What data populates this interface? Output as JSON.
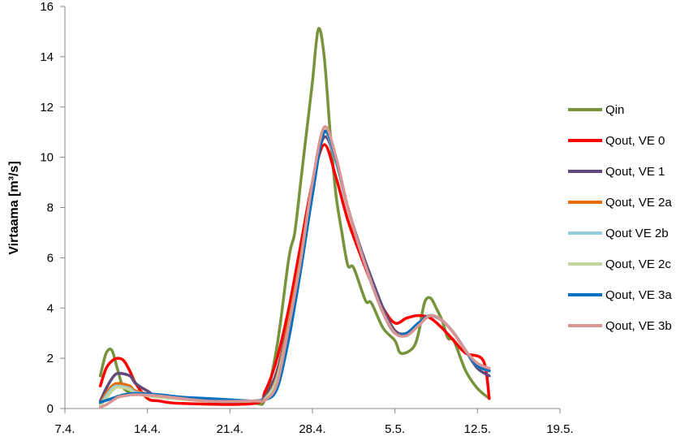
{
  "chart_data": {
    "type": "line",
    "ylabel": "Virtaama [m³/s]",
    "ylim": [
      0,
      16
    ],
    "yticks": [
      "0",
      "2",
      "4",
      "6",
      "8",
      "10",
      "12",
      "14",
      "16"
    ],
    "xlim": [
      0,
      42
    ],
    "xticks": [
      {
        "x": 0,
        "label": "7.4."
      },
      {
        "x": 7,
        "label": "14.4."
      },
      {
        "x": 14,
        "label": "21.4."
      },
      {
        "x": 21,
        "label": "28.4."
      },
      {
        "x": 28,
        "label": "5.5."
      },
      {
        "x": 35,
        "label": "12.5."
      },
      {
        "x": 42,
        "label": "19.5."
      }
    ],
    "legend_position": "right",
    "grid": false,
    "series": [
      {
        "name": "Qin",
        "color": "#77933C",
        "points": [
          [
            3,
            1.3
          ],
          [
            3.5,
            2.2
          ],
          [
            4,
            2.3
          ],
          [
            4.5,
            1.5
          ],
          [
            5,
            0.8
          ],
          [
            6,
            0.6
          ],
          [
            8,
            0.5
          ],
          [
            12,
            0.3
          ],
          [
            16,
            0.2
          ],
          [
            17,
            0.4
          ],
          [
            18,
            2.5
          ],
          [
            19,
            6
          ],
          [
            19.5,
            7
          ],
          [
            20,
            9
          ],
          [
            20.5,
            11
          ],
          [
            21,
            13
          ],
          [
            21.5,
            15.1
          ],
          [
            22,
            14
          ],
          [
            22.5,
            11
          ],
          [
            23,
            8.5
          ],
          [
            23.5,
            7
          ],
          [
            24,
            5.7
          ],
          [
            24.5,
            5.6
          ],
          [
            25.5,
            4.3
          ],
          [
            26,
            4.2
          ],
          [
            27,
            3.2
          ],
          [
            28,
            2.7
          ],
          [
            28.5,
            2.2
          ],
          [
            29.5,
            2.4
          ],
          [
            30,
            3
          ],
          [
            30.5,
            4.2
          ],
          [
            31,
            4.4
          ],
          [
            31.5,
            4
          ],
          [
            32,
            3.5
          ],
          [
            32.5,
            2.8
          ],
          [
            33,
            2.7
          ],
          [
            34,
            1.5
          ],
          [
            35,
            0.8
          ],
          [
            36,
            0.4
          ]
        ]
      },
      {
        "name": "Qout, VE 0",
        "color": "#FF0000",
        "points": [
          [
            3,
            0.9
          ],
          [
            3.5,
            1.6
          ],
          [
            4,
            1.9
          ],
          [
            4.5,
            2
          ],
          [
            5,
            1.9
          ],
          [
            5.5,
            1.5
          ],
          [
            6,
            1
          ],
          [
            7,
            0.4
          ],
          [
            8,
            0.3
          ],
          [
            10,
            0.2
          ],
          [
            16,
            0.2
          ],
          [
            17,
            0.7
          ],
          [
            18,
            2
          ],
          [
            19,
            4
          ],
          [
            20,
            6.5
          ],
          [
            21,
            9
          ],
          [
            22,
            10.5
          ],
          [
            23,
            9.2
          ],
          [
            24,
            7.5
          ],
          [
            25,
            6.2
          ],
          [
            26,
            5
          ],
          [
            27,
            4
          ],
          [
            28,
            3.4
          ],
          [
            29,
            3.6
          ],
          [
            30,
            3.7
          ],
          [
            31,
            3.6
          ],
          [
            32,
            3.2
          ],
          [
            33,
            2.7
          ],
          [
            34,
            2.2
          ],
          [
            35.5,
            1.9
          ],
          [
            36,
            0.4
          ]
        ]
      },
      {
        "name": "Qout, VE 1",
        "color": "#604A7B",
        "points": [
          [
            3,
            0.3
          ],
          [
            3.5,
            0.8
          ],
          [
            4,
            1.2
          ],
          [
            4.5,
            1.4
          ],
          [
            5.5,
            1.3
          ],
          [
            6,
            1
          ],
          [
            7,
            0.7
          ],
          [
            8,
            0.5
          ],
          [
            12,
            0.3
          ],
          [
            16,
            0.3
          ],
          [
            17,
            0.5
          ],
          [
            18,
            1.5
          ],
          [
            19,
            3.5
          ],
          [
            20,
            6
          ],
          [
            21,
            9
          ],
          [
            22,
            10.8
          ],
          [
            23,
            9.8
          ],
          [
            24,
            8
          ],
          [
            25,
            6.5
          ],
          [
            26,
            5.2
          ],
          [
            27,
            4
          ],
          [
            28,
            3.1
          ],
          [
            29,
            3
          ],
          [
            30,
            3.4
          ],
          [
            31,
            3.7
          ],
          [
            32,
            3.5
          ],
          [
            33,
            3
          ],
          [
            34,
            2.3
          ],
          [
            35,
            1.6
          ],
          [
            36,
            1.3
          ]
        ]
      },
      {
        "name": "Qout, VE 2a",
        "color": "#E46C0A",
        "points": [
          [
            3,
            0.2
          ],
          [
            3.5,
            0.6
          ],
          [
            4,
            0.9
          ],
          [
            4.5,
            1
          ],
          [
            5.5,
            0.9
          ],
          [
            6,
            0.7
          ],
          [
            8,
            0.5
          ],
          [
            12,
            0.3
          ],
          [
            16,
            0.3
          ],
          [
            17,
            0.4
          ],
          [
            18,
            1.3
          ],
          [
            19,
            3.5
          ],
          [
            20,
            6
          ],
          [
            21,
            9
          ],
          [
            22,
            11
          ],
          [
            23,
            9.8
          ],
          [
            24,
            8
          ],
          [
            25,
            6.4
          ],
          [
            26,
            5
          ],
          [
            27,
            3.8
          ],
          [
            28,
            3
          ],
          [
            29,
            3
          ],
          [
            30,
            3.4
          ],
          [
            31,
            3.7
          ],
          [
            32,
            3.5
          ],
          [
            33,
            3
          ],
          [
            34,
            2.3
          ],
          [
            35,
            1.7
          ],
          [
            36,
            1.5
          ]
        ]
      },
      {
        "name": "Qout VE 2b",
        "color": "#93CDDD",
        "points": [
          [
            3,
            0.15
          ],
          [
            3.5,
            0.5
          ],
          [
            4,
            0.8
          ],
          [
            4.5,
            0.9
          ],
          [
            5.5,
            0.8
          ],
          [
            6,
            0.65
          ],
          [
            8,
            0.5
          ],
          [
            12,
            0.3
          ],
          [
            16,
            0.3
          ],
          [
            17,
            0.4
          ],
          [
            18,
            1.2
          ],
          [
            19,
            3.3
          ],
          [
            20,
            5.8
          ],
          [
            21,
            8.8
          ],
          [
            22,
            11
          ],
          [
            23,
            9.8
          ],
          [
            24,
            8
          ],
          [
            25,
            6.4
          ],
          [
            26,
            5
          ],
          [
            27,
            3.8
          ],
          [
            28,
            3
          ],
          [
            29,
            3
          ],
          [
            30,
            3.4
          ],
          [
            31,
            3.7
          ],
          [
            32,
            3.5
          ],
          [
            33,
            3
          ],
          [
            34,
            2.3
          ],
          [
            35,
            1.7
          ],
          [
            36,
            1.5
          ]
        ]
      },
      {
        "name": "Qout, VE 2c",
        "color": "#C3D69B",
        "points": [
          [
            3,
            0.1
          ],
          [
            3.5,
            0.4
          ],
          [
            4,
            0.7
          ],
          [
            4.5,
            0.85
          ],
          [
            5.5,
            0.75
          ],
          [
            6,
            0.6
          ],
          [
            8,
            0.45
          ],
          [
            12,
            0.3
          ],
          [
            16,
            0.3
          ],
          [
            17,
            0.4
          ],
          [
            18,
            1.1
          ],
          [
            19,
            3.2
          ],
          [
            20,
            5.7
          ],
          [
            21,
            8.7
          ],
          [
            22,
            11.1
          ],
          [
            23,
            9.9
          ],
          [
            24,
            8
          ],
          [
            25,
            6.4
          ],
          [
            26,
            5
          ],
          [
            27,
            3.8
          ],
          [
            28,
            3
          ],
          [
            29,
            3
          ],
          [
            30,
            3.4
          ],
          [
            31,
            3.7
          ],
          [
            32,
            3.5
          ],
          [
            33,
            3
          ],
          [
            34,
            2.3
          ],
          [
            35,
            1.7
          ],
          [
            36,
            1.5
          ]
        ]
      },
      {
        "name": "Qout, VE 3a",
        "color": "#0070C0",
        "points": [
          [
            3,
            0.25
          ],
          [
            4,
            0.4
          ],
          [
            5,
            0.55
          ],
          [
            6,
            0.6
          ],
          [
            8,
            0.55
          ],
          [
            10,
            0.45
          ],
          [
            12,
            0.4
          ],
          [
            14,
            0.35
          ],
          [
            16,
            0.3
          ],
          [
            17,
            0.35
          ],
          [
            18,
            0.8
          ],
          [
            19,
            2.8
          ],
          [
            20,
            5.5
          ],
          [
            21,
            8.5
          ],
          [
            22,
            11
          ],
          [
            23,
            9.9
          ],
          [
            24,
            8
          ],
          [
            25,
            6.4
          ],
          [
            26,
            5
          ],
          [
            27,
            3.8
          ],
          [
            28,
            3
          ],
          [
            29,
            3
          ],
          [
            30,
            3.4
          ],
          [
            31,
            3.7
          ],
          [
            32,
            3.5
          ],
          [
            33,
            3
          ],
          [
            34,
            2.3
          ],
          [
            35,
            1.7
          ],
          [
            36,
            1.5
          ]
        ]
      },
      {
        "name": "Qout, VE 3b",
        "color": "#D99694",
        "points": [
          [
            3,
            0.05
          ],
          [
            3.5,
            0.15
          ],
          [
            4,
            0.3
          ],
          [
            4.5,
            0.45
          ],
          [
            5,
            0.5
          ],
          [
            6,
            0.55
          ],
          [
            8,
            0.5
          ],
          [
            12,
            0.3
          ],
          [
            16,
            0.3
          ],
          [
            17,
            0.35
          ],
          [
            18,
            1
          ],
          [
            19,
            3.3
          ],
          [
            20,
            5.9
          ],
          [
            21,
            9
          ],
          [
            22,
            11.2
          ],
          [
            23,
            10
          ],
          [
            24,
            8
          ],
          [
            25,
            6.4
          ],
          [
            26,
            5
          ],
          [
            27,
            3.8
          ],
          [
            28,
            3
          ],
          [
            29,
            2.9
          ],
          [
            30,
            3.3
          ],
          [
            31,
            3.7
          ],
          [
            32,
            3.5
          ],
          [
            33,
            3
          ],
          [
            34,
            2.3
          ],
          [
            35,
            1.8
          ],
          [
            36,
            1.6
          ]
        ]
      }
    ]
  }
}
